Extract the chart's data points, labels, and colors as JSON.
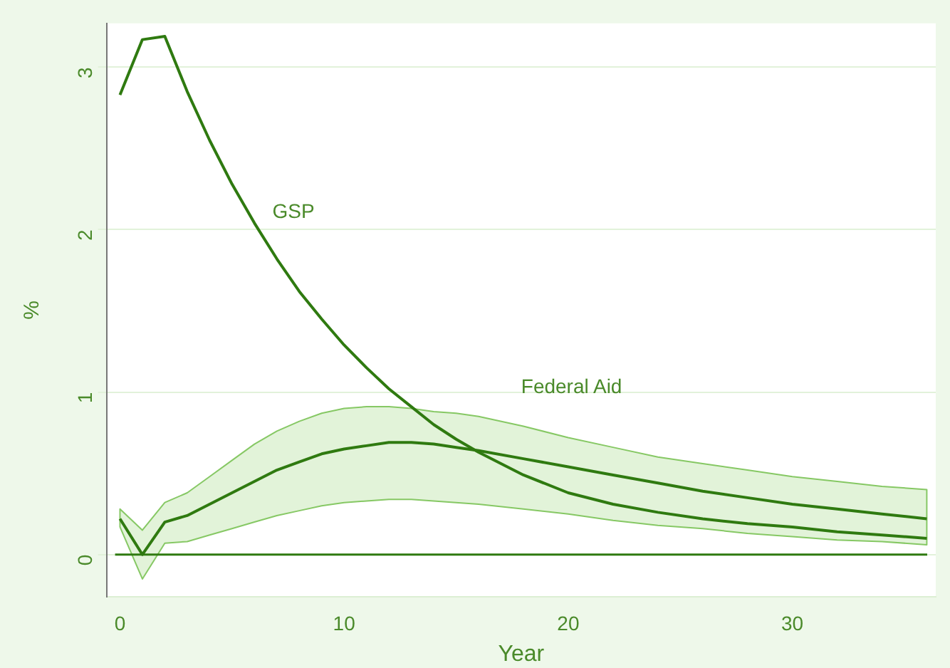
{
  "chart_data": {
    "type": "line",
    "xlabel": "Year",
    "ylabel": "%",
    "xlim": [
      -0.6,
      36.4
    ],
    "xticks": [
      0,
      10,
      20,
      30
    ],
    "ylim": [
      -0.26,
      3.27
    ],
    "yticks": [
      0,
      1,
      2,
      3
    ],
    "grid": "y",
    "legend": false,
    "marker": "none",
    "line_style": "solid",
    "series": [
      {
        "color": "#2f7a10",
        "x": [
          0,
          1,
          2,
          3,
          4,
          5,
          6,
          7,
          8,
          9,
          10,
          11,
          12,
          13,
          14,
          15,
          16,
          18,
          20,
          22,
          24,
          26,
          28,
          30,
          32,
          34,
          36
        ],
        "values": [
          2.83,
          3.17,
          3.19,
          2.85,
          2.55,
          2.28,
          2.04,
          1.82,
          1.62,
          1.45,
          1.29,
          1.15,
          1.02,
          0.91,
          0.8,
          0.71,
          0.63,
          0.49,
          0.38,
          0.31,
          0.26,
          0.22,
          0.19,
          0.17,
          0.14,
          0.12,
          0.1
        ]
      },
      {
        "color": "#2f7a10",
        "x": [
          0,
          1,
          2,
          3,
          4,
          5,
          6,
          7,
          8,
          9,
          10,
          11,
          12,
          13,
          14,
          15,
          16,
          18,
          20,
          22,
          24,
          26,
          28,
          30,
          32,
          34,
          36
        ],
        "values": [
          0.22,
          0.0,
          0.2,
          0.24,
          0.31,
          0.38,
          0.45,
          0.52,
          0.57,
          0.62,
          0.65,
          0.67,
          0.69,
          0.69,
          0.68,
          0.66,
          0.64,
          0.59,
          0.54,
          0.49,
          0.44,
          0.39,
          0.35,
          0.31,
          0.28,
          0.25,
          0.22
        ],
        "lower": [
          0.17,
          -0.15,
          0.07,
          0.08,
          0.12,
          0.16,
          0.2,
          0.24,
          0.27,
          0.3,
          0.32,
          0.33,
          0.34,
          0.34,
          0.33,
          0.32,
          0.31,
          0.28,
          0.25,
          0.21,
          0.18,
          0.16,
          0.13,
          0.11,
          0.09,
          0.08,
          0.06
        ],
        "upper": [
          0.28,
          0.15,
          0.32,
          0.38,
          0.48,
          0.58,
          0.68,
          0.76,
          0.82,
          0.87,
          0.9,
          0.91,
          0.91,
          0.9,
          0.88,
          0.87,
          0.85,
          0.79,
          0.72,
          0.66,
          0.6,
          0.56,
          0.52,
          0.48,
          0.45,
          0.42,
          0.4
        ]
      }
    ],
    "ref_lines": [
      {
        "axis": "y",
        "value": 0,
        "color": "#2f7a10"
      }
    ],
    "annotations": [
      "GSP",
      "Federal Aid"
    ]
  }
}
